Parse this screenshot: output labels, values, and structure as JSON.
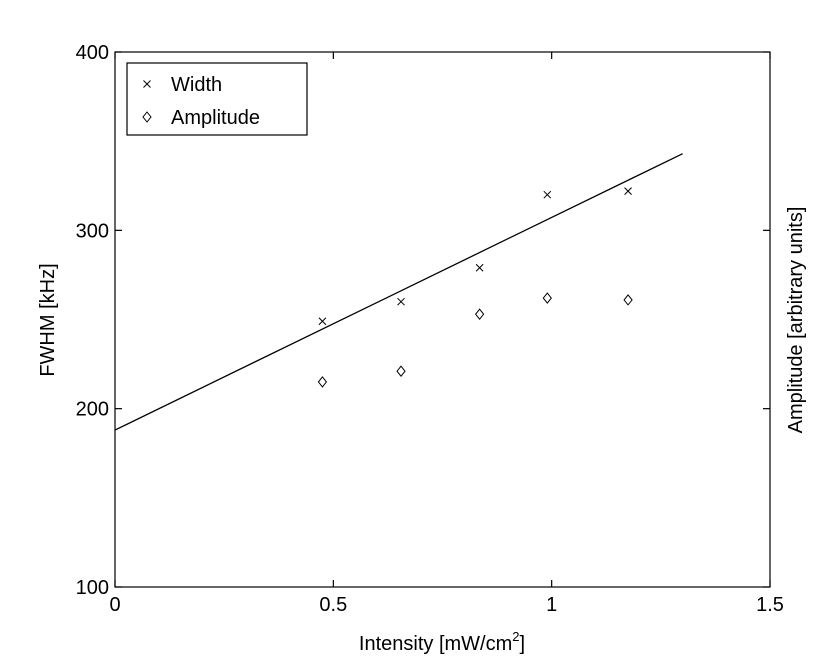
{
  "chart_data": {
    "type": "scatter",
    "xlabel": "Intensity [mW/cm",
    "xlabel_sup": "2",
    "xlabel_end": "]",
    "ylabel": "FWHM [kHz]",
    "ylabel_right": "Amplitude [arbitrary units]",
    "xlim": [
      0,
      1.5
    ],
    "ylim": [
      100,
      400
    ],
    "x_ticks": [
      {
        "value": 0,
        "label": "0"
      },
      {
        "value": 0.5,
        "label": "0.5"
      },
      {
        "value": 1,
        "label": "1"
      },
      {
        "value": 1.5,
        "label": "1.5"
      }
    ],
    "y_ticks": [
      {
        "value": 100,
        "label": "100"
      },
      {
        "value": 200,
        "label": "200"
      },
      {
        "value": 300,
        "label": "300"
      },
      {
        "value": 400,
        "label": "400"
      }
    ],
    "grid": false,
    "legend_position": "top-left",
    "series": [
      {
        "name": "Width",
        "marker": "x",
        "points": [
          {
            "x": 0.475,
            "y": 249
          },
          {
            "x": 0.655,
            "y": 260
          },
          {
            "x": 0.835,
            "y": 279
          },
          {
            "x": 0.99,
            "y": 320
          },
          {
            "x": 1.175,
            "y": 322
          }
        ]
      },
      {
        "name": "Amplitude",
        "marker": "diamond",
        "points": [
          {
            "x": 0.475,
            "y": 215
          },
          {
            "x": 0.655,
            "y": 221
          },
          {
            "x": 0.835,
            "y": 253
          },
          {
            "x": 0.99,
            "y": 262
          },
          {
            "x": 1.175,
            "y": 261
          }
        ]
      }
    ],
    "fit_line": {
      "x": [
        0,
        1.3
      ],
      "y": [
        188,
        343
      ]
    }
  }
}
